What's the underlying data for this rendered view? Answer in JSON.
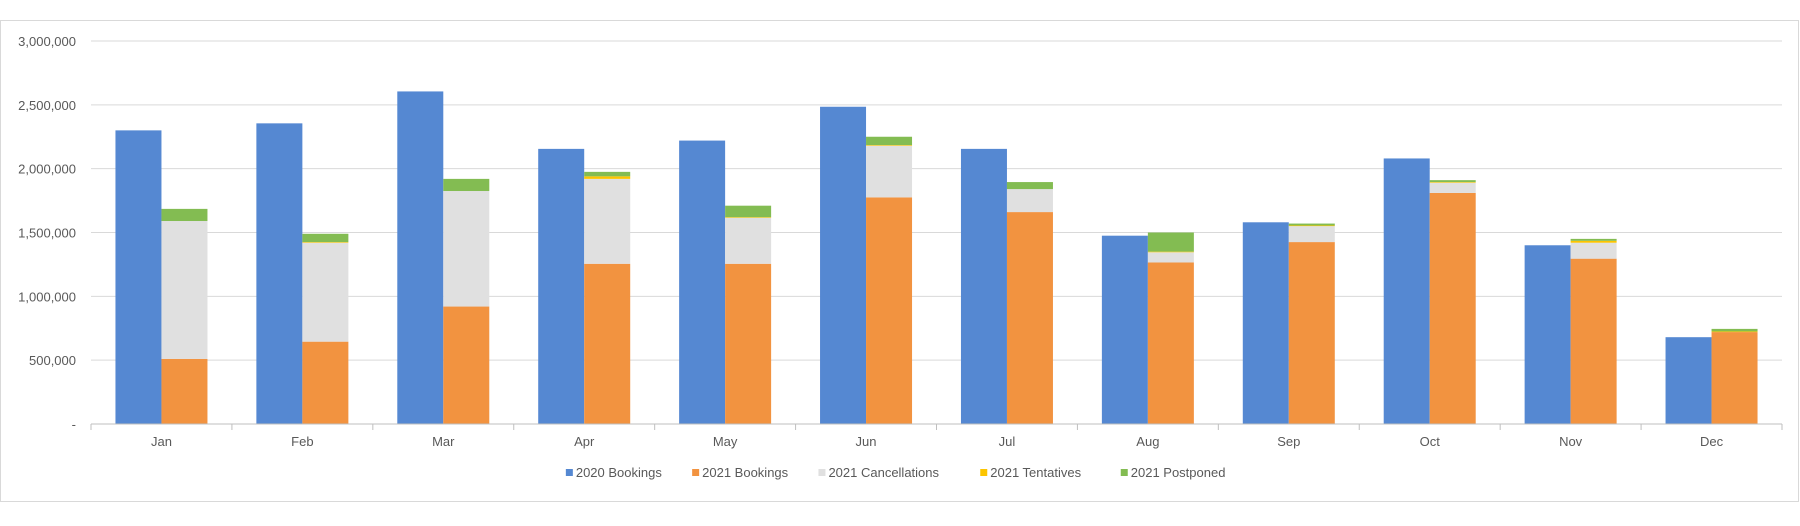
{
  "chart_data": {
    "type": "bar",
    "title": "",
    "xlabel": "",
    "ylabel": "",
    "ylim": [
      0,
      3000000
    ],
    "yticks": [
      0,
      500000,
      1000000,
      1500000,
      2000000,
      2500000,
      3000000
    ],
    "ytick_labels": [
      "-",
      "500,000",
      "1,000,000",
      "1,500,000",
      "2,000,000",
      "2,500,000",
      "3,000,000"
    ],
    "grid": true,
    "legend_position": "bottom",
    "categories": [
      "Jan",
      "Feb",
      "Mar",
      "Apr",
      "May",
      "Jun",
      "Jul",
      "Aug",
      "Sep",
      "Oct",
      "Nov",
      "Dec"
    ],
    "series": [
      {
        "name": "2020 Bookings",
        "stack": "2020",
        "color": "#5588d2",
        "values": [
          2300000,
          2355000,
          2605000,
          2155000,
          2220000,
          2485000,
          2155000,
          1475000,
          1580000,
          2080000,
          1400000,
          680000
        ]
      },
      {
        "name": "2021 Bookings",
        "stack": "2021",
        "color": "#f29340",
        "values": [
          510000,
          645000,
          920000,
          1255000,
          1255000,
          1775000,
          1660000,
          1265000,
          1425000,
          1810000,
          1295000,
          720000
        ]
      },
      {
        "name": "2021 Cancellations",
        "stack": "2021",
        "color": "#e0e0e0",
        "values": [
          1080000,
          775000,
          905000,
          665000,
          360000,
          405000,
          180000,
          80000,
          125000,
          80000,
          125000,
          0
        ]
      },
      {
        "name": "2021 Tentatives",
        "stack": "2021",
        "color": "#fcc500",
        "values": [
          0,
          5000,
          0,
          20000,
          5000,
          5000,
          0,
          5000,
          5000,
          5000,
          15000,
          5000
        ]
      },
      {
        "name": "2021 Postponed",
        "stack": "2021",
        "color": "#83bc52",
        "values": [
          95000,
          65000,
          95000,
          35000,
          90000,
          65000,
          55000,
          150000,
          15000,
          15000,
          15000,
          20000
        ]
      }
    ]
  }
}
